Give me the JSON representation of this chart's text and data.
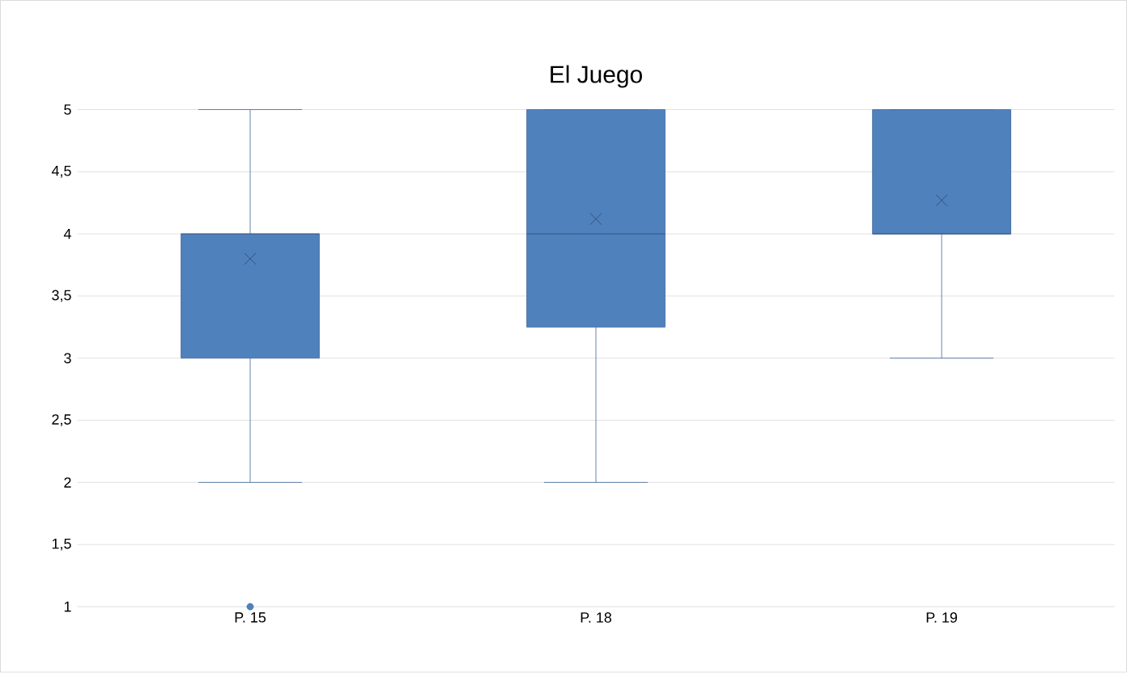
{
  "chart_data": {
    "type": "box",
    "title": "El Juego",
    "categories": [
      "P. 15",
      "P. 18",
      "P. 19"
    ],
    "color": "#4f81bd",
    "boxes": [
      {
        "low": 2,
        "q1": 3,
        "median": 4,
        "q3": 4,
        "high": 5,
        "mean": 3.8,
        "outliers": [
          1
        ]
      },
      {
        "low": 2,
        "q1": 3.25,
        "median": 4,
        "q3": 5,
        "high": 5,
        "mean": 4.12
      },
      {
        "low": 3,
        "q1": 4,
        "median": 4,
        "q3": 5,
        "high": 5,
        "mean": 4.27
      }
    ],
    "ylim": [
      1,
      5
    ],
    "yticks": [
      1,
      {
        "value": 1.5,
        "label": "1,5"
      },
      2,
      {
        "value": 2.5,
        "label": "2,5"
      },
      3,
      {
        "value": 3.5,
        "label": "3,5"
      },
      4,
      {
        "value": 4.5,
        "label": "4,5"
      },
      5
    ],
    "grid": "y"
  }
}
